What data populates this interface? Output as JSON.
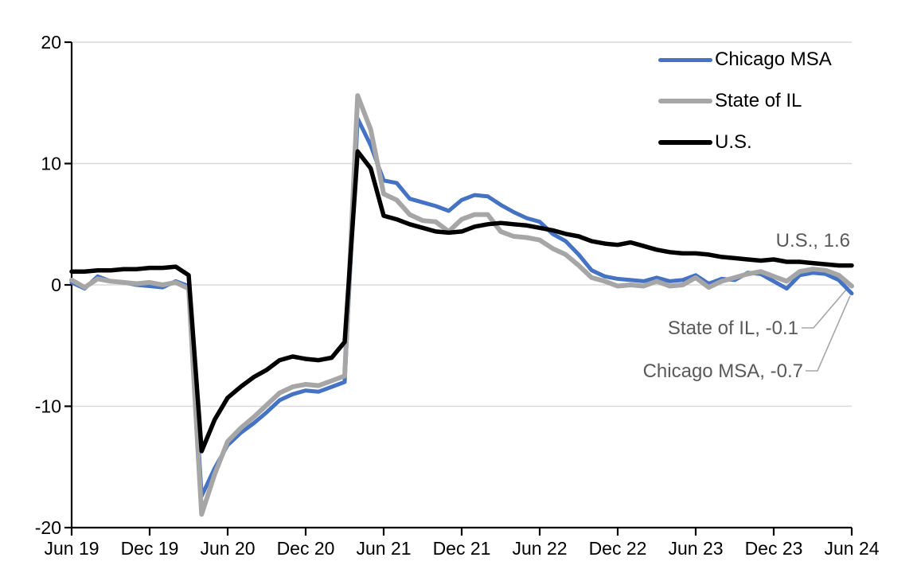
{
  "chart_data": {
    "type": "line",
    "title": "",
    "x_start": "Jun 2019",
    "x_end": "Jun 2024",
    "x_frequency": "monthly",
    "x_tick_labels": [
      "Jun 19",
      "Dec 19",
      "Jun 20",
      "Dec 20",
      "Jun 21",
      "Dec 21",
      "Jun 22",
      "Dec 22",
      "Jun 23",
      "Dec 23",
      "Jun 24"
    ],
    "y_ticks": [
      20,
      10,
      0,
      -10,
      -20
    ],
    "ylim": [
      -20,
      20
    ],
    "grid": "horizontal",
    "legend_position": "top-right",
    "series": [
      {
        "name": "Chicago MSA",
        "color": "#4472C4",
        "stroke_width": 5,
        "last_value": -0.7,
        "values": [
          0.2,
          -0.3,
          0.7,
          0.3,
          0.2,
          0.0,
          -0.1,
          -0.2,
          0.3,
          -0.1,
          -17.4,
          -15.1,
          -13.2,
          -12.2,
          -11.4,
          -10.5,
          -9.5,
          -9.0,
          -8.7,
          -8.8,
          -8.4,
          -8.0,
          13.7,
          11.5,
          8.6,
          8.4,
          7.1,
          6.8,
          6.5,
          6.1,
          7.0,
          7.4,
          7.3,
          6.6,
          6.0,
          5.5,
          5.2,
          4.2,
          3.6,
          2.5,
          1.2,
          0.7,
          0.5,
          0.4,
          0.3,
          0.6,
          0.3,
          0.4,
          0.8,
          0.1,
          0.5,
          0.4,
          1.0,
          0.9,
          0.3,
          -0.3,
          0.8,
          1.0,
          0.9,
          0.4,
          -0.7
        ]
      },
      {
        "name": "State of IL",
        "color": "#A6A6A6",
        "stroke_width": 6,
        "last_value": -0.1,
        "values": [
          0.4,
          -0.2,
          0.5,
          0.3,
          0.2,
          0.1,
          0.2,
          0.0,
          0.2,
          -0.3,
          -18.9,
          -15.6,
          -12.9,
          -11.8,
          -10.9,
          -9.9,
          -8.9,
          -8.4,
          -8.2,
          -8.3,
          -7.9,
          -7.5,
          15.6,
          12.8,
          7.5,
          7.0,
          5.8,
          5.3,
          5.2,
          4.4,
          5.4,
          5.8,
          5.8,
          4.4,
          4.0,
          3.9,
          3.7,
          3.0,
          2.5,
          1.6,
          0.6,
          0.3,
          -0.1,
          0.0,
          -0.1,
          0.3,
          -0.1,
          0.0,
          0.6,
          -0.2,
          0.3,
          0.6,
          0.9,
          1.1,
          0.7,
          0.3,
          1.1,
          1.3,
          1.2,
          0.8,
          -0.1
        ]
      },
      {
        "name": "U.S.",
        "color": "#000000",
        "stroke_width": 5.5,
        "last_value": 1.6,
        "values": [
          1.1,
          1.1,
          1.2,
          1.2,
          1.3,
          1.3,
          1.4,
          1.4,
          1.5,
          0.8,
          -13.7,
          -11.1,
          -9.3,
          -8.4,
          -7.6,
          -7.0,
          -6.2,
          -5.9,
          -6.1,
          -6.2,
          -6.0,
          -4.7,
          11.0,
          9.6,
          5.7,
          5.4,
          5.0,
          4.7,
          4.4,
          4.3,
          4.4,
          4.8,
          5.0,
          5.1,
          5.0,
          4.9,
          4.7,
          4.5,
          4.2,
          4.0,
          3.6,
          3.4,
          3.3,
          3.5,
          3.2,
          2.9,
          2.7,
          2.6,
          2.6,
          2.5,
          2.3,
          2.2,
          2.1,
          2.0,
          2.1,
          1.9,
          1.9,
          1.8,
          1.7,
          1.6,
          1.6
        ]
      }
    ]
  },
  "annotations": {
    "us": "U.S., 1.6",
    "il": "State of IL, -0.1",
    "chicago": "Chicago MSA, -0.7"
  },
  "colors": {
    "chicago_blue": "#4472C4",
    "il_gray": "#A6A6A6",
    "us_black": "#000000",
    "gridline": "#D9D9D9",
    "axis": "#000000",
    "annotation_text": "#595959",
    "leader_line": "#A6A6A6"
  }
}
